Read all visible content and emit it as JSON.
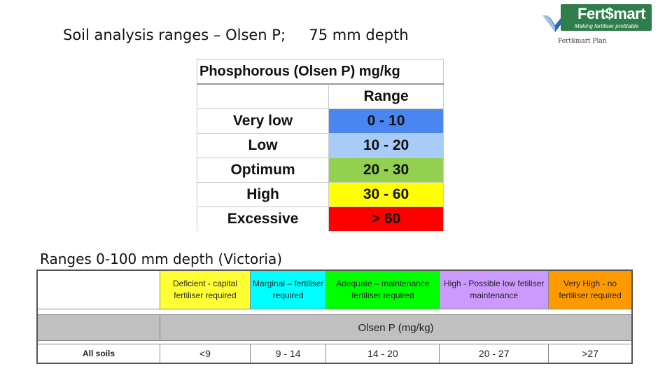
{
  "slide": {
    "title": "Soil analysis ranges – Olsen P;     75 mm depth",
    "subtitle": "Ranges 0-100 mm depth (Victoria)"
  },
  "logo": {
    "name": "Fert$mart",
    "tagline": "Making fertiliser profitable",
    "sub": "Fert$mart Plan",
    "colors": {
      "box": "#2f7d4a",
      "tick": "#2a68b8"
    }
  },
  "table_75mm": {
    "header": "Phosphorous (Olsen P) mg/kg",
    "range_header": "Range",
    "rows": [
      {
        "label": "Very low",
        "range": "0  -  10",
        "color": "#4a86f0"
      },
      {
        "label": "Low",
        "range": "10  -  20",
        "color": "#a8cbf8"
      },
      {
        "label": "Optimum",
        "range": "20  -  30",
        "color": "#92d050"
      },
      {
        "label": "High",
        "range": "30  -  60",
        "color": "#ffff00"
      },
      {
        "label": "Excessive",
        "range": ">  60",
        "color": "#ff0000"
      }
    ]
  },
  "table_100mm": {
    "categories": [
      {
        "label": "Deficient - capital fertiliser required",
        "color": "#ffff33"
      },
      {
        "label": "Marginal –  fertiliser required",
        "color": "#00ffff"
      },
      {
        "label": "Adequate – maintenance fertiliser required",
        "color": "#00ff00"
      },
      {
        "label": "High    -    Possible low fetiliser maintenance",
        "color": "#cc99ff"
      },
      {
        "label": "Very High - no fertiliser required",
        "color": "#ff9900"
      }
    ],
    "unit_header": "Olsen P (mg/kg)",
    "header_bg": "#c0c0c0",
    "row_label": "All soils",
    "values": [
      "<9",
      "9 - 14",
      "14 - 20",
      "20 - 27",
      ">27"
    ]
  }
}
